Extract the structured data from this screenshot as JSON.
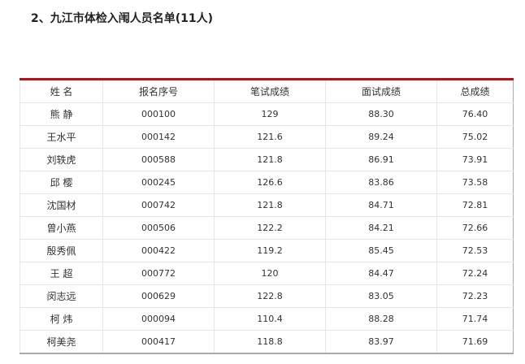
{
  "title": "2、九江市体检入闱人员名单(11人)",
  "headers": [
    "姓 名",
    "报名序号",
    "笔试成绩",
    "面试成绩",
    "总成绩"
  ],
  "rows": [
    [
      "熊 静",
      "000100",
      "129",
      "88.30",
      "76.40"
    ],
    [
      "王水平",
      "000142",
      "121.6",
      "89.24",
      "75.02"
    ],
    [
      "刘轶虎",
      "000588",
      "121.8",
      "86.91",
      "73.91"
    ],
    [
      "邱 樱",
      "000245",
      "126.6",
      "83.86",
      "73.58"
    ],
    [
      "沈国材",
      "000742",
      "121.8",
      "84.71",
      "72.81"
    ],
    [
      "曾小燕",
      "000506",
      "122.2",
      "84.21",
      "72.66"
    ],
    [
      "殷秀佩",
      "000422",
      "119.2",
      "85.45",
      "72.53"
    ],
    [
      "王 超",
      "000772",
      "120",
      "84.47",
      "72.24"
    ],
    [
      "闵志远",
      "000629",
      "122.8",
      "83.05",
      "72.23"
    ],
    [
      "柯 炜",
      "000094",
      "110.4",
      "88.28",
      "71.74"
    ],
    [
      "柯美尧",
      "000417",
      "118.8",
      "83.97",
      "71.69"
    ]
  ]
}
